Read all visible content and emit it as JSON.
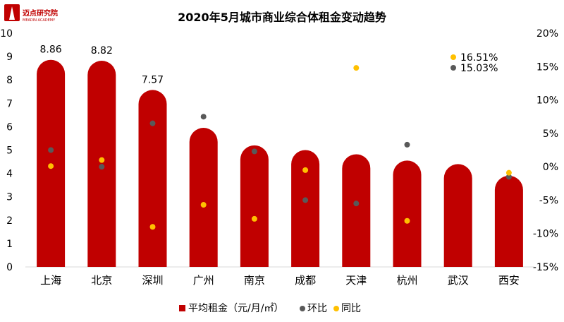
{
  "logo": {
    "name": "迈点研究院",
    "sub": "MEADIN ACADEMY"
  },
  "chart_data": {
    "type": "bar",
    "title": "2020年5月城市商业综合体租金变动趋势",
    "categories": [
      "上海",
      "北京",
      "深圳",
      "广州",
      "南京",
      "成都",
      "天津",
      "杭州",
      "武汉",
      "西安"
    ],
    "series": [
      {
        "name": "平均租金（元/月/㎡）",
        "kind": "bar",
        "axis": "left",
        "color": "#c00000",
        "values": [
          8.86,
          8.82,
          7.57,
          5.95,
          5.2,
          5.0,
          4.82,
          4.55,
          4.4,
          3.9
        ],
        "data_labels": [
          "8.86",
          "8.82",
          "7.57",
          null,
          null,
          null,
          null,
          null,
          null,
          null
        ]
      },
      {
        "name": "环比",
        "kind": "scatter",
        "axis": "right",
        "color": "#595959",
        "values": [
          2.5,
          0.0,
          6.5,
          7.5,
          2.3,
          -5.0,
          -5.5,
          3.3,
          null,
          -1.5
        ]
      },
      {
        "name": "同比",
        "kind": "scatter",
        "axis": "right",
        "color": "#ffc000",
        "values": [
          0.1,
          1.0,
          -9.0,
          -5.7,
          -7.8,
          -0.5,
          14.8,
          -8.1,
          null,
          -0.9
        ]
      }
    ],
    "annotations": [
      {
        "label": "16.51%",
        "color": "#ffc000"
      },
      {
        "label": "15.03%",
        "color": "#595959"
      }
    ],
    "left_axis": {
      "min": 0,
      "max": 10,
      "ticks": [
        "0",
        "1",
        "2",
        "3",
        "4",
        "5",
        "6",
        "7",
        "8",
        "9",
        "10"
      ]
    },
    "right_axis": {
      "min": -15,
      "max": 20,
      "ticks": [
        "-15%",
        "-10%",
        "-5%",
        "0%",
        "5%",
        "10%",
        "15%",
        "20%"
      ]
    },
    "grid": false,
    "legend_position": "bottom"
  }
}
